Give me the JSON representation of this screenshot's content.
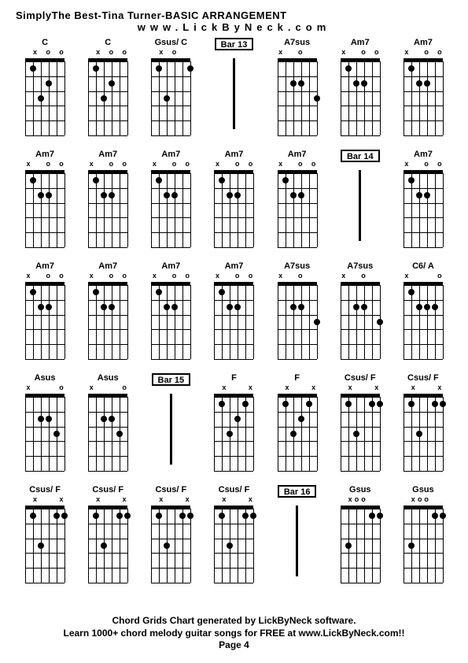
{
  "title": "SimplyThe Best-Tina Turner-BASIC ARRANGEMENT",
  "url": "www.LickByNeck.com",
  "footer1": "Chord Grids Chart generated by LickByNeck software.",
  "footer2": "Learn 1000+ chord melody guitar songs for FREE at www.LickByNeck.com!!",
  "pageNum": "Page 4",
  "colors": {
    "bg": "#ffffff",
    "fg": "#000000"
  },
  "grid_cols": 7,
  "grid_rows": 5,
  "strings": 6,
  "frets": 5,
  "cells": [
    {
      "type": "chord",
      "label": "C",
      "markers": [
        "",
        "x",
        "",
        "o",
        "",
        "o"
      ],
      "dots": [
        [
          3,
          3
        ],
        [
          2,
          4
        ],
        [
          1,
          2
        ]
      ]
    },
    {
      "type": "chord",
      "label": "C",
      "markers": [
        "",
        "x",
        "",
        "o",
        "",
        "o"
      ],
      "dots": [
        [
          3,
          3
        ],
        [
          2,
          4
        ],
        [
          1,
          2
        ]
      ]
    },
    {
      "type": "chord",
      "label": "Gsus/ C",
      "markers": [
        "",
        "x",
        "",
        "o",
        "",
        ""
      ],
      "dots": [
        [
          3,
          3
        ],
        [
          1,
          2
        ],
        [
          1,
          6
        ]
      ]
    },
    {
      "type": "bar",
      "label": "Bar 13"
    },
    {
      "type": "chord",
      "label": "A7sus",
      "markers": [
        "x",
        "",
        "",
        "o",
        "",
        ""
      ],
      "dots": [
        [
          2,
          3
        ],
        [
          3,
          6
        ],
        [
          2,
          4
        ]
      ]
    },
    {
      "type": "chord",
      "label": "Am7",
      "markers": [
        "x",
        "",
        "",
        "o",
        "",
        "o"
      ],
      "dots": [
        [
          2,
          3
        ],
        [
          1,
          2
        ],
        [
          2,
          4
        ]
      ]
    },
    {
      "type": "chord",
      "label": "Am7",
      "markers": [
        "x",
        "",
        "",
        "o",
        "",
        "o"
      ],
      "dots": [
        [
          2,
          3
        ],
        [
          1,
          2
        ],
        [
          2,
          4
        ]
      ]
    },
    {
      "type": "chord",
      "label": "Am7",
      "markers": [
        "x",
        "",
        "",
        "o",
        "",
        "o"
      ],
      "dots": [
        [
          2,
          3
        ],
        [
          1,
          2
        ],
        [
          2,
          4
        ]
      ]
    },
    {
      "type": "chord",
      "label": "Am7",
      "markers": [
        "x",
        "",
        "",
        "o",
        "",
        "o"
      ],
      "dots": [
        [
          2,
          3
        ],
        [
          1,
          2
        ],
        [
          2,
          4
        ]
      ]
    },
    {
      "type": "chord",
      "label": "Am7",
      "markers": [
        "x",
        "",
        "",
        "o",
        "",
        "o"
      ],
      "dots": [
        [
          2,
          3
        ],
        [
          1,
          2
        ],
        [
          2,
          4
        ]
      ]
    },
    {
      "type": "chord",
      "label": "Am7",
      "markers": [
        "x",
        "",
        "",
        "o",
        "",
        "o"
      ],
      "dots": [
        [
          2,
          3
        ],
        [
          1,
          2
        ],
        [
          2,
          4
        ]
      ]
    },
    {
      "type": "chord",
      "label": "Am7",
      "markers": [
        "x",
        "",
        "",
        "o",
        "",
        "o"
      ],
      "dots": [
        [
          2,
          3
        ],
        [
          1,
          2
        ],
        [
          2,
          4
        ]
      ]
    },
    {
      "type": "bar",
      "label": "Bar 14"
    },
    {
      "type": "chord",
      "label": "Am7",
      "markers": [
        "x",
        "",
        "",
        "o",
        "",
        "o"
      ],
      "dots": [
        [
          2,
          3
        ],
        [
          1,
          2
        ],
        [
          2,
          4
        ]
      ]
    },
    {
      "type": "chord",
      "label": "Am7",
      "markers": [
        "x",
        "",
        "",
        "o",
        "",
        "o"
      ],
      "dots": [
        [
          2,
          3
        ],
        [
          1,
          2
        ],
        [
          2,
          4
        ]
      ]
    },
    {
      "type": "chord",
      "label": "Am7",
      "markers": [
        "x",
        "",
        "",
        "o",
        "",
        "o"
      ],
      "dots": [
        [
          2,
          3
        ],
        [
          1,
          2
        ],
        [
          2,
          4
        ]
      ]
    },
    {
      "type": "chord",
      "label": "Am7",
      "markers": [
        "x",
        "",
        "",
        "o",
        "",
        "o"
      ],
      "dots": [
        [
          2,
          3
        ],
        [
          1,
          2
        ],
        [
          2,
          4
        ]
      ]
    },
    {
      "type": "chord",
      "label": "Am7",
      "markers": [
        "x",
        "",
        "",
        "o",
        "",
        "o"
      ],
      "dots": [
        [
          2,
          3
        ],
        [
          1,
          2
        ],
        [
          2,
          4
        ]
      ]
    },
    {
      "type": "chord",
      "label": "A7sus",
      "markers": [
        "x",
        "",
        "",
        "o",
        "",
        ""
      ],
      "dots": [
        [
          2,
          3
        ],
        [
          3,
          6
        ],
        [
          2,
          4
        ]
      ]
    },
    {
      "type": "chord",
      "label": "A7sus",
      "markers": [
        "x",
        "",
        "",
        "o",
        "",
        ""
      ],
      "dots": [
        [
          2,
          3
        ],
        [
          3,
          6
        ],
        [
          2,
          4
        ]
      ]
    },
    {
      "type": "chord",
      "label": "C6/ A",
      "markers": [
        "x",
        "",
        "",
        "",
        "",
        "o"
      ],
      "dots": [
        [
          2,
          3
        ],
        [
          2,
          4
        ],
        [
          1,
          2
        ],
        [
          2,
          5
        ]
      ]
    },
    {
      "type": "chord",
      "label": "Asus",
      "markers": [
        "x",
        "",
        "",
        "",
        "",
        "o"
      ],
      "dots": [
        [
          2,
          3
        ],
        [
          2,
          4
        ],
        [
          3,
          5
        ]
      ]
    },
    {
      "type": "chord",
      "label": "Asus",
      "markers": [
        "x",
        "",
        "",
        "",
        "",
        "o"
      ],
      "dots": [
        [
          2,
          3
        ],
        [
          2,
          4
        ],
        [
          3,
          5
        ]
      ]
    },
    {
      "type": "bar",
      "label": "Bar 15"
    },
    {
      "type": "chord",
      "label": "F",
      "markers": [
        "",
        "x",
        "",
        "",
        "",
        "x"
      ],
      "dots": [
        [
          3,
          3
        ],
        [
          2,
          4
        ],
        [
          1,
          2
        ],
        [
          1,
          5
        ]
      ]
    },
    {
      "type": "chord",
      "label": "F",
      "markers": [
        "",
        "x",
        "",
        "",
        "",
        "x"
      ],
      "dots": [
        [
          3,
          3
        ],
        [
          2,
          4
        ],
        [
          1,
          2
        ],
        [
          1,
          5
        ]
      ]
    },
    {
      "type": "chord",
      "label": "Csus/ F",
      "markers": [
        "",
        "x",
        "",
        "",
        "",
        "x"
      ],
      "dots": [
        [
          3,
          3
        ],
        [
          1,
          5
        ],
        [
          1,
          2
        ],
        [
          1,
          6
        ]
      ]
    },
    {
      "type": "chord",
      "label": "Csus/ F",
      "markers": [
        "",
        "x",
        "",
        "",
        "",
        "x"
      ],
      "dots": [
        [
          3,
          3
        ],
        [
          1,
          5
        ],
        [
          1,
          2
        ],
        [
          1,
          6
        ]
      ]
    },
    {
      "type": "chord",
      "label": "Csus/ F",
      "markers": [
        "",
        "x",
        "",
        "",
        "",
        "x"
      ],
      "dots": [
        [
          3,
          3
        ],
        [
          1,
          5
        ],
        [
          1,
          2
        ],
        [
          1,
          6
        ]
      ]
    },
    {
      "type": "chord",
      "label": "Csus/ F",
      "markers": [
        "",
        "x",
        "",
        "",
        "",
        "x"
      ],
      "dots": [
        [
          3,
          3
        ],
        [
          1,
          5
        ],
        [
          1,
          2
        ],
        [
          1,
          6
        ]
      ]
    },
    {
      "type": "chord",
      "label": "Csus/ F",
      "markers": [
        "",
        "x",
        "",
        "",
        "",
        "x"
      ],
      "dots": [
        [
          3,
          3
        ],
        [
          1,
          5
        ],
        [
          1,
          2
        ],
        [
          1,
          6
        ]
      ]
    },
    {
      "type": "chord",
      "label": "Csus/ F",
      "markers": [
        "",
        "x",
        "",
        "",
        "",
        "x"
      ],
      "dots": [
        [
          3,
          3
        ],
        [
          1,
          5
        ],
        [
          1,
          2
        ],
        [
          1,
          6
        ]
      ]
    },
    {
      "type": "bar",
      "label": "Bar 16"
    },
    {
      "type": "chord",
      "label": "Gsus",
      "markers": [
        "",
        "x",
        "o",
        "o",
        "",
        ""
      ],
      "dots": [
        [
          3,
          2
        ],
        [
          1,
          5
        ],
        [
          1,
          6
        ]
      ]
    },
    {
      "type": "chord",
      "label": "Gsus",
      "markers": [
        "",
        "x",
        "o",
        "o",
        "",
        ""
      ],
      "dots": [
        [
          3,
          2
        ],
        [
          1,
          5
        ],
        [
          1,
          6
        ]
      ]
    }
  ]
}
